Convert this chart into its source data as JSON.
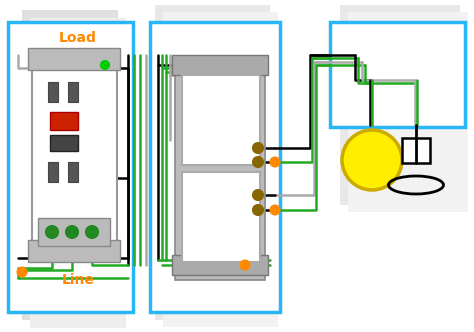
{
  "bg_color": "#ffffff",
  "wire_colors": {
    "black": "#000000",
    "green": "#22aa22",
    "gray": "#aaaaaa",
    "white": "#dddddd",
    "yellow": "#ffee00",
    "orange": "#ff8800"
  }
}
